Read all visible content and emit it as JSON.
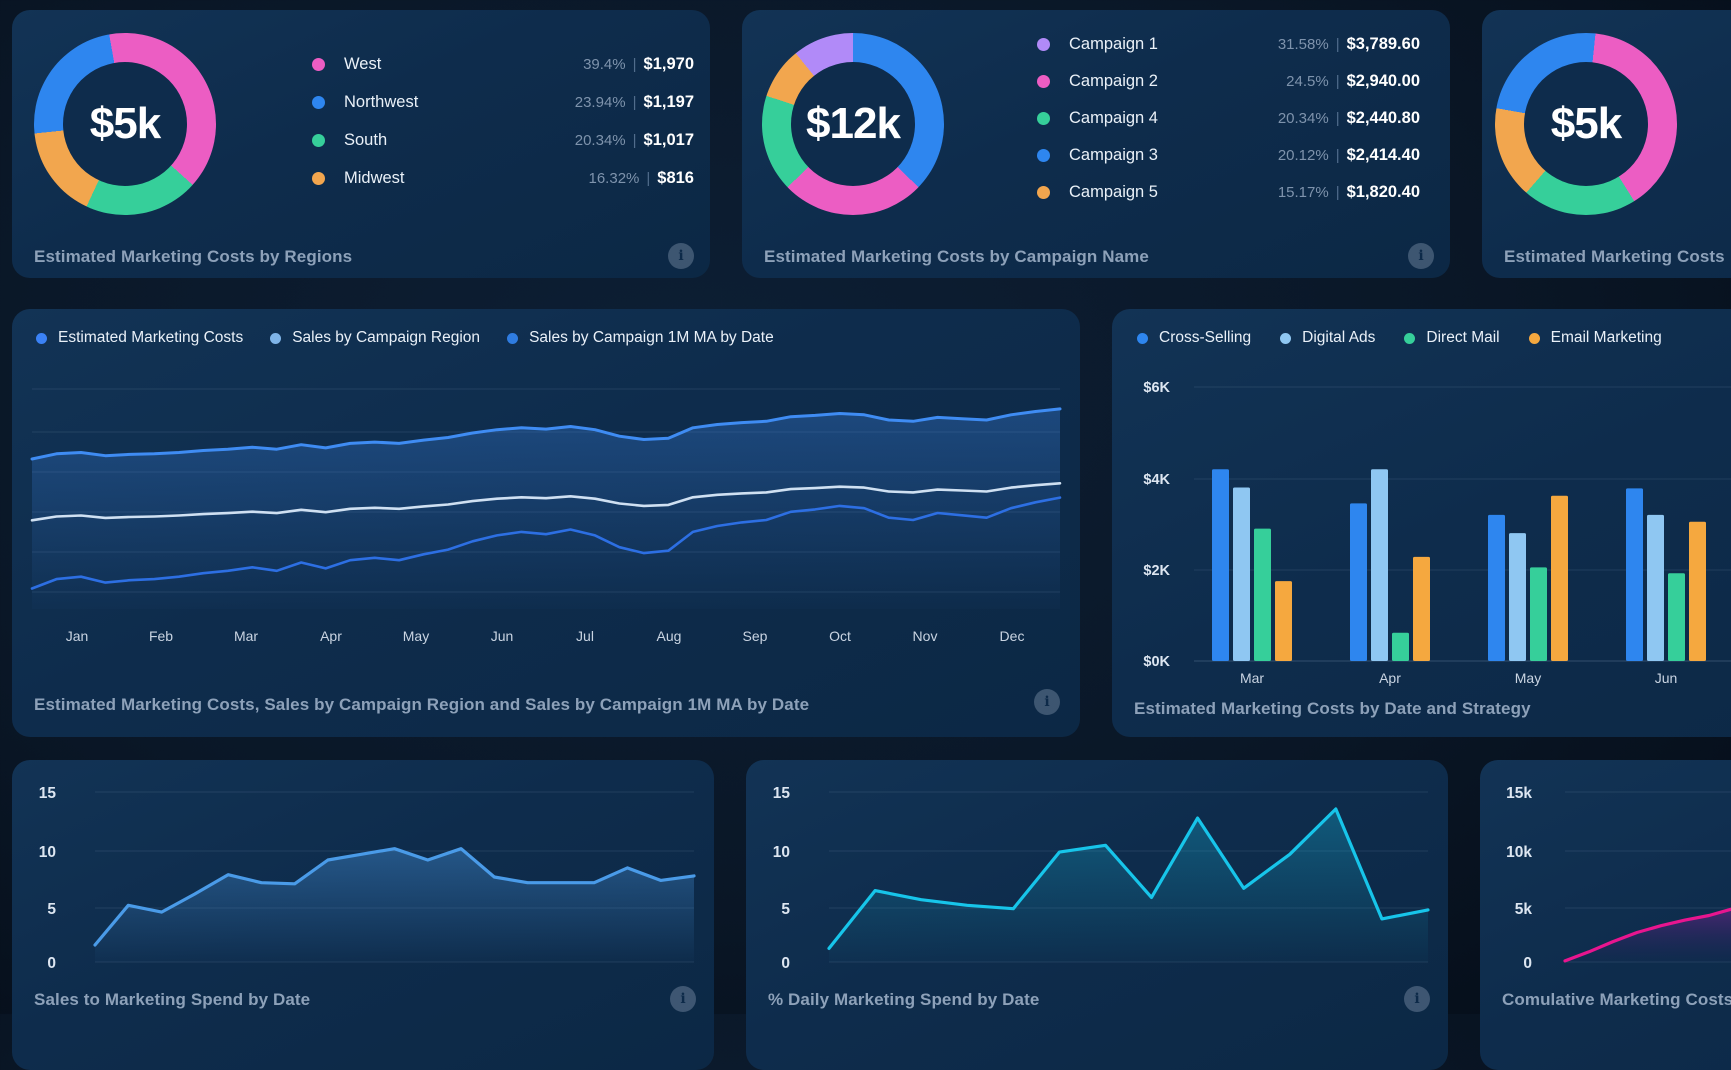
{
  "ui": {
    "info_glyph": "i"
  },
  "chart_data": [
    {
      "id": "regions-donut",
      "type": "pie",
      "title": "Estimated Marketing Costs by Regions",
      "center_label": "$5k",
      "labels": [
        "West",
        "Northwest",
        "South",
        "Midwest"
      ],
      "colors": [
        "#ec5dc3",
        "#2e86ef",
        "#36cf9a",
        "#f2a64e"
      ],
      "pct_display": [
        "39.4%",
        "23.94%",
        "20.34%",
        "16.32%"
      ],
      "value_display": [
        "$1,970",
        "$1,197",
        "$1,017",
        "$816"
      ],
      "values_pct": [
        39.4,
        23.94,
        20.34,
        16.32
      ],
      "draw": {
        "start_deg": -10,
        "arcs": [
          {
            "color": "#ec5dc3",
            "deg": 142
          },
          {
            "color": "#36cf9a",
            "deg": 73
          },
          {
            "color": "#f2a64e",
            "deg": 59
          },
          {
            "color": "#2e86ef",
            "deg": 86
          }
        ]
      }
    },
    {
      "id": "campaigns-donut",
      "type": "pie",
      "title": "Estimated Marketing Costs by Campaign Name",
      "center_label": "$12k",
      "labels": [
        "Campaign 1",
        "Campaign 2",
        "Campaign 4",
        "Campaign 3",
        "Campaign 5"
      ],
      "colors": [
        "#b18af8",
        "#ec5dc3",
        "#36cf9a",
        "#2e86ef",
        "#f2a64e"
      ],
      "pct_display": [
        "31.58%",
        "24.5%",
        "20.34%",
        "20.12%",
        "15.17%"
      ],
      "value_display": [
        "$3,789.60",
        "$2,940.00",
        "$2,440.80",
        "$2,414.40",
        "$1,820.40"
      ],
      "values_pct": [
        31.58,
        24.5,
        20.34,
        20.12,
        15.17
      ],
      "draw": {
        "start_deg": 0,
        "arcs": [
          {
            "color": "#2e86ef",
            "deg": 134
          },
          {
            "color": "#ec5dc3",
            "deg": 92
          },
          {
            "color": "#36cf9a",
            "deg": 62
          },
          {
            "color": "#f2a64e",
            "deg": 33
          },
          {
            "color": "#b18af8",
            "deg": 39
          }
        ]
      }
    },
    {
      "id": "costs3-donut",
      "type": "pie",
      "title": "Estimated Marketing Costs",
      "center_label": "$5k",
      "draw": {
        "start_deg": 6,
        "arcs": [
          {
            "color": "#ec5dc3",
            "deg": 142
          },
          {
            "color": "#36cf9a",
            "deg": 73
          },
          {
            "color": "#f2a64e",
            "deg": 59
          },
          {
            "color": "#2e86ef",
            "deg": 86
          }
        ]
      }
    },
    {
      "id": "trend-lines",
      "type": "line",
      "title": "Estimated Marketing Costs,  Sales by Campaign Region and Sales by Campaign 1M MA by Date",
      "x_labels": [
        "Jan",
        "Feb",
        "Mar",
        "Apr",
        "May",
        "Jun",
        "Jul",
        "Aug",
        "Sep",
        "Oct",
        "Nov",
        "Dec"
      ],
      "legend": [
        {
          "label": "Estimated Marketing Costs",
          "color": "#3b82f6"
        },
        {
          "label": "Sales by Campaign Region",
          "color": "#7fb4e8"
        },
        {
          "label": "Sales by Campaign 1M MA by Date",
          "color": "#2f7ce0"
        }
      ],
      "note": "y-axis unlabeled in source; series values are relative units 0-100 (value = base + amp * shape)",
      "shape": [
        0.2,
        0.28,
        0.3,
        0.25,
        0.27,
        0.28,
        0.3,
        0.33,
        0.35,
        0.38,
        0.35,
        0.42,
        0.37,
        0.44,
        0.46,
        0.44,
        0.49,
        0.53,
        0.6,
        0.65,
        0.68,
        0.66,
        0.7,
        0.65,
        0.55,
        0.5,
        0.52,
        0.68,
        0.73,
        0.76,
        0.78,
        0.85,
        0.87,
        0.9,
        0.88,
        0.8,
        0.78,
        0.84,
        0.82,
        0.8,
        0.88,
        0.93,
        0.97
      ],
      "series": [
        {
          "name": "Estimated Marketing Costs",
          "color": "#3f8cf3",
          "base": 52.7,
          "amp": 25.0,
          "fill": true
        },
        {
          "name": "Sales by Campaign 1M MA by Date",
          "color": "#cfe0f2",
          "base": 30.4,
          "amp": 18.5,
          "fill": false
        },
        {
          "name": "Sales by Campaign Region",
          "color": "#2d6fe3",
          "base": -1.2,
          "amp": 45.4,
          "fill": false
        }
      ]
    },
    {
      "id": "strategy-bars",
      "type": "bar",
      "title": "Estimated Marketing Costs by Date and Strategy",
      "categories": [
        "Mar",
        "Apr",
        "May",
        "Jun"
      ],
      "y_ticks": [
        "$0K",
        "$2K",
        "$4K",
        "$6K"
      ],
      "ylim": [
        0,
        6000
      ],
      "series": [
        {
          "name": "Cross-Selling",
          "color": "#2e86ef",
          "values": [
            4200,
            3450,
            3200,
            3780
          ]
        },
        {
          "name": "Digital Ads",
          "color": "#8fc7f2",
          "values": [
            3800,
            4200,
            2800,
            3200
          ]
        },
        {
          "name": "Direct Mail",
          "color": "#36cf9a",
          "values": [
            2900,
            620,
            2050,
            1920
          ]
        },
        {
          "name": "Email Marketing",
          "color": "#f5a83f",
          "values": [
            1750,
            2280,
            3620,
            3050
          ]
        }
      ]
    },
    {
      "id": "sales-area",
      "type": "area",
      "title": "Sales to Marketing Spend by Date",
      "y_ticks": [
        "15",
        "10",
        "5",
        "0"
      ],
      "ylim": [
        0,
        15
      ],
      "color": "#4a9be8",
      "values": [
        1.5,
        5,
        4.4,
        6,
        7.7,
        7,
        6.9,
        9,
        9.5,
        10,
        9,
        10,
        7.5,
        7,
        7,
        7,
        8.3,
        7.2,
        7.6
      ]
    },
    {
      "id": "daily-line",
      "type": "line",
      "title": "% Daily Marketing Spend by Date",
      "y_ticks": [
        "15",
        "10",
        "5",
        "0"
      ],
      "ylim": [
        0,
        15
      ],
      "color": "#17c5ea",
      "values": [
        1.2,
        6.3,
        5.5,
        5,
        4.7,
        9.7,
        10.3,
        5.7,
        12.7,
        6.5,
        9.5,
        13.5,
        3.8,
        4.6
      ]
    },
    {
      "id": "cumulative-area",
      "type": "area",
      "title": "Comulative Marketing Costs",
      "y_ticks": [
        "15k",
        "10k",
        "5k",
        "0"
      ],
      "ylim": [
        0,
        15000
      ],
      "color": "#e8158f",
      "values": [
        100,
        900,
        1800,
        2600,
        3200,
        3700,
        4100,
        4700,
        5400
      ]
    }
  ]
}
